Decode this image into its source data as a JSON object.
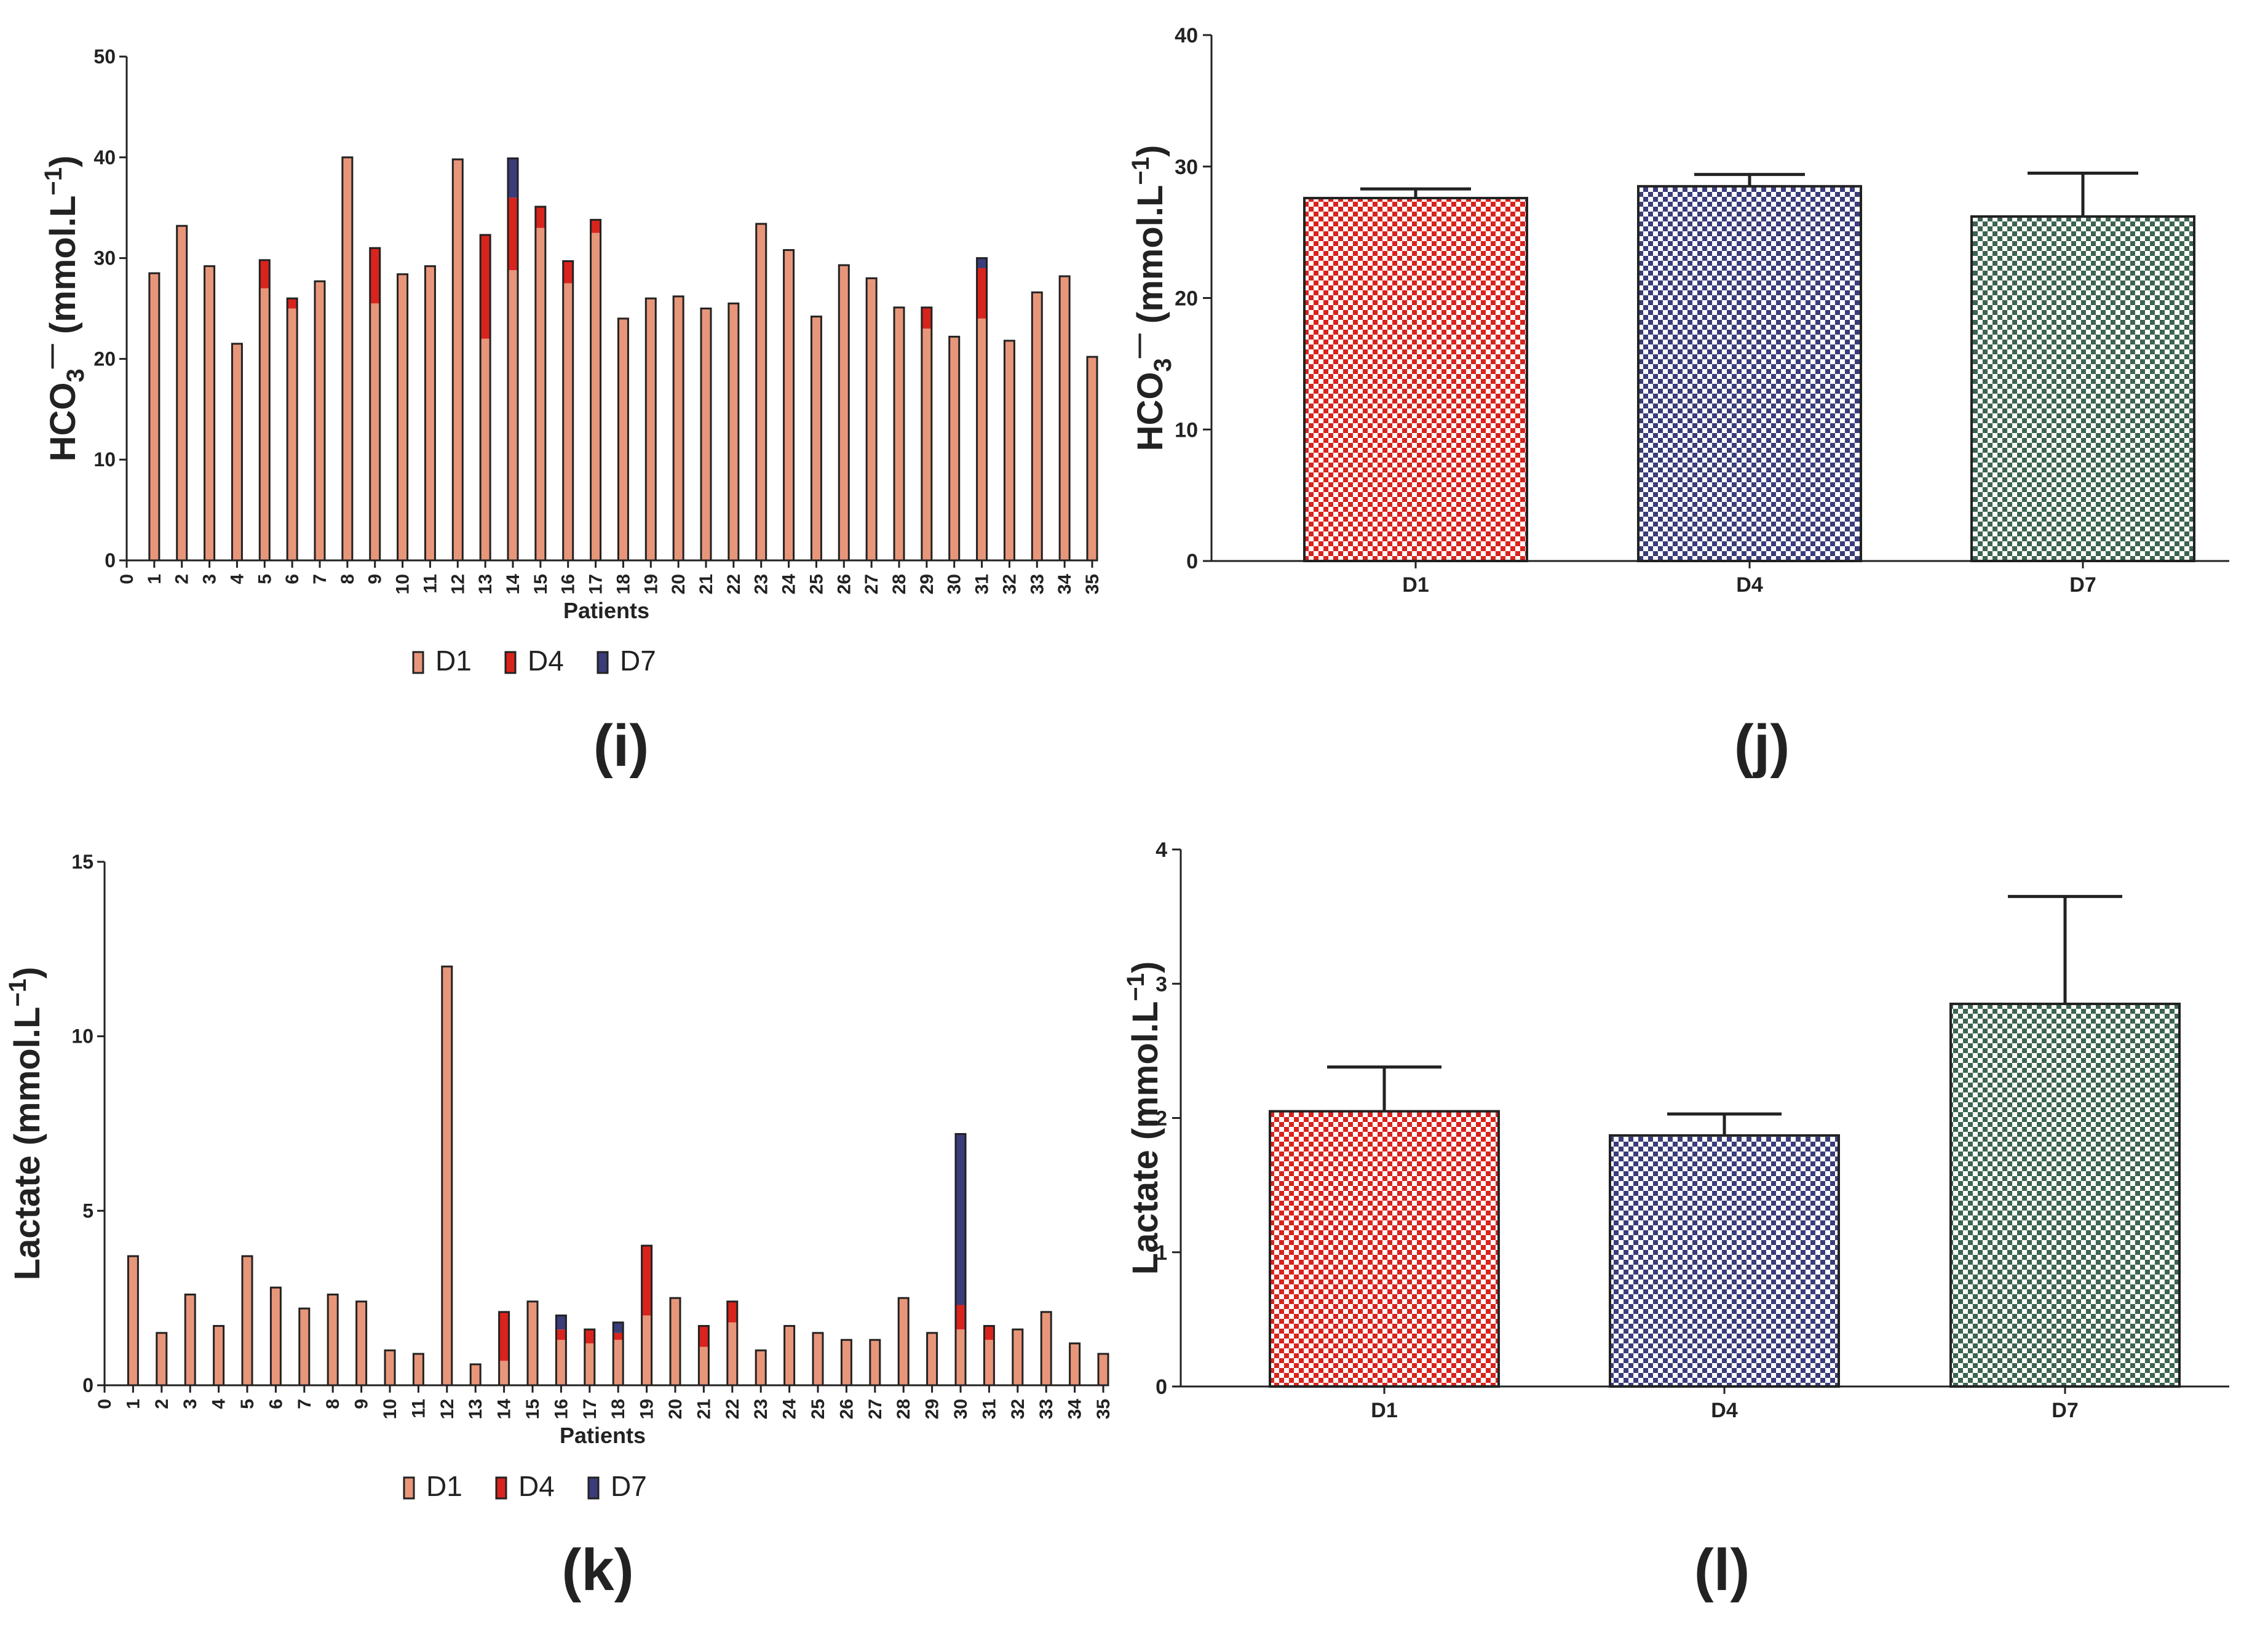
{
  "chart_data": [
    {
      "id": "i",
      "type": "bar",
      "stacked": true,
      "panel_label": "(i)",
      "xlabel": "Patients",
      "ylabel": "HCO3− (mmol.L−1)",
      "ylabel_parts": {
        "main": "HCO",
        "sub": "3",
        "sup_mid": "—",
        "units": "(mmol.L",
        "units_sup": "−1",
        "close": ")"
      },
      "ylim": [
        0,
        50
      ],
      "yticks": [
        "0",
        "10",
        "20",
        "30",
        "40",
        "50"
      ],
      "xtick_labels": [
        "0",
        "1",
        "2",
        "3",
        "4",
        "5",
        "6",
        "7",
        "8",
        "9",
        "10",
        "11",
        "12",
        "13",
        "14",
        "15",
        "16",
        "17",
        "18",
        "19",
        "20",
        "21",
        "22",
        "23",
        "24",
        "25",
        "26",
        "27",
        "28",
        "29",
        "30",
        "31",
        "32",
        "33",
        "34",
        "35"
      ],
      "categories": [
        "1",
        "2",
        "3",
        "4",
        "5",
        "6",
        "7",
        "8",
        "9",
        "10",
        "11",
        "12",
        "13",
        "14",
        "15",
        "16",
        "17",
        "18",
        "19",
        "20",
        "21",
        "22",
        "23",
        "24",
        "25",
        "26",
        "27",
        "28",
        "29",
        "30",
        "31",
        "32",
        "33",
        "34",
        "35"
      ],
      "series": [
        {
          "name": "D1",
          "color": "#e8967a",
          "values": [
            28.5,
            33.2,
            29.2,
            21.5,
            27.0,
            25.0,
            27.7,
            40.0,
            25.5,
            28.4,
            29.2,
            39.8,
            22.0,
            28.8,
            33.0,
            27.5,
            32.5,
            24.0,
            26.0,
            26.2,
            25.0,
            25.5,
            33.4,
            30.8,
            24.2,
            29.3,
            28.0,
            25.1,
            23.0,
            22.2,
            24.0,
            21.8,
            26.6,
            28.2,
            20.2
          ]
        },
        {
          "name": "D4",
          "color": "#d9231d",
          "values": [
            0,
            0,
            0,
            0,
            2.8,
            1.0,
            0,
            0,
            5.5,
            0,
            0,
            0,
            10.3,
            7.2,
            2.1,
            2.2,
            1.3,
            0,
            0,
            0,
            0,
            0,
            0,
            0,
            0,
            0,
            0,
            0,
            2.1,
            0,
            5.0,
            0,
            0,
            0,
            0
          ]
        },
        {
          "name": "D7",
          "color": "#3a3d7a",
          "values": [
            0,
            0,
            0,
            0,
            0,
            0,
            0,
            0,
            0,
            0,
            0,
            0,
            0,
            3.9,
            0,
            0,
            0,
            0,
            0,
            0,
            0,
            0,
            0,
            0,
            0,
            0,
            0,
            0,
            0,
            0,
            1.0,
            0,
            0,
            0,
            0
          ]
        }
      ],
      "legend": [
        {
          "label": "D1",
          "color": "#e8967a"
        },
        {
          "label": "D4",
          "color": "#d9231d"
        },
        {
          "label": "D7",
          "color": "#3a3d7a"
        }
      ]
    },
    {
      "id": "j",
      "type": "bar",
      "panel_label": "(j)",
      "xlabel": "",
      "ylabel": "HCO3− (mmol.L−1)",
      "ylabel_parts": {
        "main": "HCO",
        "sub": "3",
        "sup_mid": "—",
        "units": "(mmol.L",
        "units_sup": "−1",
        "close": ")"
      },
      "ylim": [
        0,
        40
      ],
      "yticks": [
        "0",
        "10",
        "20",
        "30",
        "40"
      ],
      "categories": [
        "D1",
        "D4",
        "D7"
      ],
      "values": [
        27.6,
        28.5,
        26.2
      ],
      "errors": [
        0.7,
        0.9,
        3.3
      ],
      "colors": [
        "#d9231d",
        "#3a3d7a",
        "#3d6450"
      ]
    },
    {
      "id": "k",
      "type": "bar",
      "stacked": true,
      "panel_label": "(k)",
      "xlabel": "Patients",
      "ylabel": "Lactate (mmol.L−1)",
      "ylabel_parts": {
        "main": "Lactate ",
        "sub": "",
        "sup_mid": "",
        "units": "(mmol.L",
        "units_sup": "−1",
        "close": ")"
      },
      "ylim": [
        0,
        15
      ],
      "yticks": [
        "0",
        "5",
        "10",
        "15"
      ],
      "xtick_labels": [
        "0",
        "1",
        "2",
        "3",
        "4",
        "5",
        "6",
        "7",
        "8",
        "9",
        "10",
        "11",
        "12",
        "13",
        "14",
        "15",
        "16",
        "17",
        "18",
        "19",
        "20",
        "21",
        "22",
        "23",
        "24",
        "25",
        "26",
        "27",
        "28",
        "29",
        "30",
        "31",
        "32",
        "33",
        "34",
        "35"
      ],
      "categories": [
        "1",
        "2",
        "3",
        "4",
        "5",
        "6",
        "7",
        "8",
        "9",
        "10",
        "11",
        "12",
        "13",
        "14",
        "15",
        "16",
        "17",
        "18",
        "19",
        "20",
        "21",
        "22",
        "23",
        "24",
        "25",
        "26",
        "27",
        "28",
        "29",
        "30",
        "31",
        "32",
        "33",
        "34",
        "35"
      ],
      "series": [
        {
          "name": "D1",
          "color": "#e8967a",
          "values": [
            3.7,
            1.5,
            2.6,
            1.7,
            3.7,
            2.8,
            2.2,
            2.6,
            2.4,
            1.0,
            0.9,
            12.0,
            0.6,
            0.7,
            2.4,
            1.3,
            1.2,
            1.3,
            2.0,
            2.5,
            1.1,
            1.8,
            1.0,
            1.7,
            1.5,
            1.3,
            1.3,
            2.5,
            1.5,
            1.6,
            1.3,
            1.6,
            2.1,
            1.2,
            0.9
          ]
        },
        {
          "name": "D4",
          "color": "#d9231d",
          "values": [
            0,
            0,
            0,
            0,
            0,
            0,
            0,
            0,
            0,
            0,
            0,
            0,
            0,
            1.4,
            0,
            0.3,
            0.4,
            0.2,
            2.0,
            0,
            0.6,
            0.6,
            0,
            0,
            0,
            0,
            0,
            0,
            0,
            0.7,
            0.4,
            0,
            0,
            0,
            0
          ]
        },
        {
          "name": "D7",
          "color": "#3a3d7a",
          "values": [
            0,
            0,
            0,
            0,
            0,
            0,
            0,
            0,
            0,
            0,
            0,
            0,
            0,
            0,
            0,
            0.4,
            0,
            0.3,
            0,
            0,
            0,
            0,
            0,
            0,
            0,
            0,
            0,
            0,
            0,
            4.9,
            0,
            0,
            0,
            0,
            0
          ]
        }
      ],
      "legend": [
        {
          "label": "D1",
          "color": "#e8967a"
        },
        {
          "label": "D4",
          "color": "#d9231d"
        },
        {
          "label": "D7",
          "color": "#3a3d7a"
        }
      ]
    },
    {
      "id": "l",
      "type": "bar",
      "panel_label": "(l)",
      "xlabel": "",
      "ylabel": "Lactate (mmol.L−1)",
      "ylabel_parts": {
        "main": "Lactate ",
        "sub": "",
        "sup_mid": "",
        "units": "(mmol.L",
        "units_sup": "−1",
        "close": ")"
      },
      "ylim": [
        0,
        4
      ],
      "yticks": [
        "0",
        "1",
        "2",
        "3",
        "4"
      ],
      "categories": [
        "D1",
        "D4",
        "D7"
      ],
      "values": [
        2.05,
        1.87,
        2.85
      ],
      "errors": [
        0.33,
        0.16,
        0.8
      ],
      "colors": [
        "#d9231d",
        "#3a3d7a",
        "#3d6450"
      ]
    }
  ]
}
